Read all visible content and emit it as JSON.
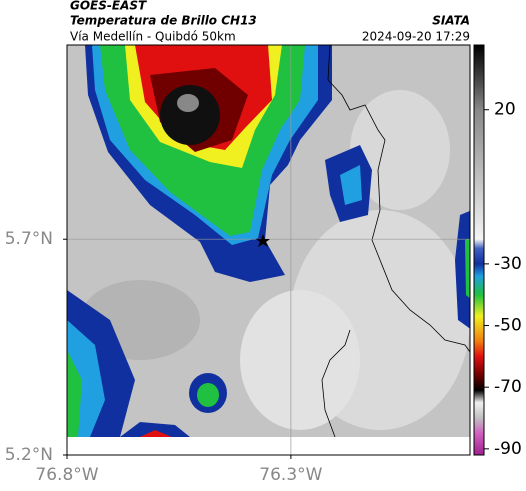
{
  "header": {
    "source": "GOES-EAST",
    "product": "Temperatura de Brillo CH13",
    "route": "Vía Medellín - Quibdó 50km",
    "agency": "SIATA",
    "datetime": "2024-09-20 17:29"
  },
  "map": {
    "xlim": [
      -76.8,
      -75.9
    ],
    "ylim": [
      5.2,
      6.15
    ],
    "lat_ticks": [
      {
        "value": 5.7,
        "label": "5.7°N"
      },
      {
        "value": 5.2,
        "label": "5.2°N"
      }
    ],
    "lon_ticks": [
      {
        "value": -76.8,
        "label": "76.8°W"
      },
      {
        "value": -76.3,
        "label": "76.3°W"
      }
    ],
    "grid": true,
    "grid_color": "#999999"
  },
  "colorbar": {
    "lim": [
      41,
      -92
    ],
    "ticks": [
      20,
      -30,
      -50,
      -70,
      -90
    ],
    "colormap": [
      {
        "value": 41,
        "color": "#000000"
      },
      {
        "value": 30,
        "color": "#444444"
      },
      {
        "value": 20,
        "color": "#888888"
      },
      {
        "value": -22,
        "color": "#f4f4f4"
      },
      {
        "value": -25,
        "color": "#4060c0"
      },
      {
        "value": -30,
        "color": "#1030a0"
      },
      {
        "value": -34,
        "color": "#20a0e0"
      },
      {
        "value": -40,
        "color": "#20c040"
      },
      {
        "value": -47,
        "color": "#f0f020"
      },
      {
        "value": -55,
        "color": "#f08010"
      },
      {
        "value": -60,
        "color": "#e01010"
      },
      {
        "value": -66,
        "color": "#700000"
      },
      {
        "value": -71,
        "color": "#000000"
      },
      {
        "value": -75,
        "color": "#f0f0f0"
      },
      {
        "value": -80,
        "color": "#c0c0c0"
      },
      {
        "value": -85,
        "color": "#d060c0"
      },
      {
        "value": -92,
        "color": "#a02090"
      }
    ]
  }
}
